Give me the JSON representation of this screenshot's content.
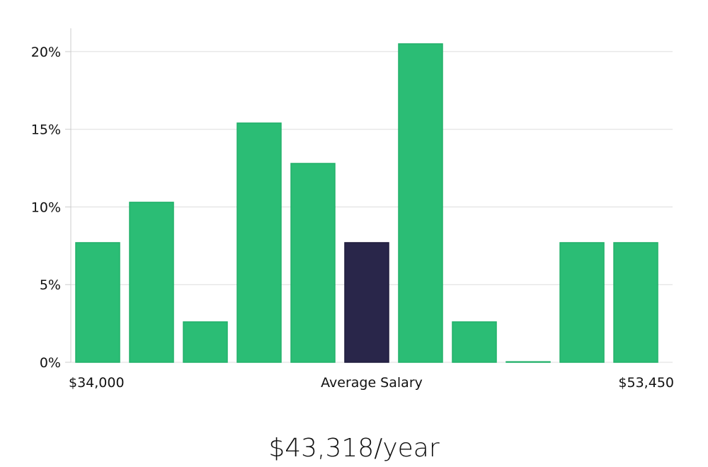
{
  "chart_data": {
    "type": "bar",
    "categories": [
      "1",
      "2",
      "3",
      "4",
      "5",
      "6",
      "7",
      "8",
      "9",
      "10",
      "11"
    ],
    "values": [
      7.7,
      10.3,
      2.6,
      15.4,
      12.8,
      7.7,
      20.5,
      2.6,
      0,
      7.7,
      7.7
    ],
    "highlight_index": 5,
    "ylim": [
      0,
      21.5
    ],
    "yticks": [
      0,
      5,
      10,
      15,
      20
    ],
    "ytick_labels": [
      "0%",
      "5%",
      "10%",
      "15%",
      "20%"
    ],
    "xlabel_left": "$34,000",
    "xlabel_center": "Average Salary",
    "xlabel_right": "$53,450",
    "grid": true,
    "colors": {
      "bar": "#2bbd75",
      "bar_stroke": "#22b06a",
      "highlight": "#29264a",
      "grid": "#dddddd",
      "axis": "#cccccc"
    }
  },
  "annual_salary": "$43,318/year"
}
